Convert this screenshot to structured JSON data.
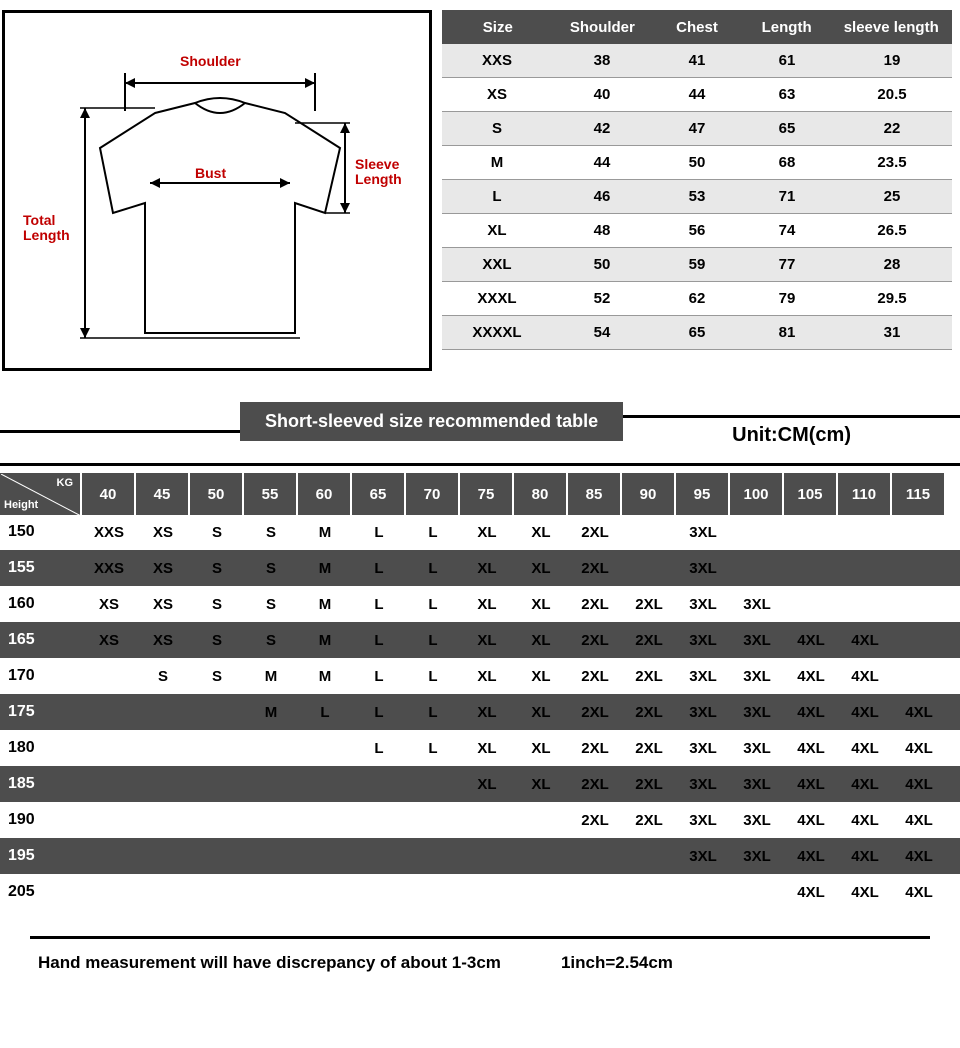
{
  "diagram": {
    "label_shoulder": "Shoulder",
    "label_bust": "Bust",
    "label_sleeve": "Sleeve\nLength",
    "label_total": "Total\nLength"
  },
  "size_table": {
    "headers": [
      "Size",
      "Shoulder",
      "Chest",
      "Length",
      "sleeve length"
    ],
    "rows": [
      {
        "size": "XXS",
        "shoulder": "38",
        "chest": "41",
        "length": "61",
        "sleeve": "19"
      },
      {
        "size": "XS",
        "shoulder": "40",
        "chest": "44",
        "length": "63",
        "sleeve": "20.5"
      },
      {
        "size": "S",
        "shoulder": "42",
        "chest": "47",
        "length": "65",
        "sleeve": "22"
      },
      {
        "size": "M",
        "shoulder": "44",
        "chest": "50",
        "length": "68",
        "sleeve": "23.5"
      },
      {
        "size": "L",
        "shoulder": "46",
        "chest": "53",
        "length": "71",
        "sleeve": "25"
      },
      {
        "size": "XL",
        "shoulder": "48",
        "chest": "56",
        "length": "74",
        "sleeve": "26.5"
      },
      {
        "size": "XXL",
        "shoulder": "50",
        "chest": "59",
        "length": "77",
        "sleeve": "28"
      },
      {
        "size": "XXXL",
        "shoulder": "52",
        "chest": "62",
        "length": "79",
        "sleeve": "29.5"
      },
      {
        "size": "XXXXL",
        "shoulder": "54",
        "chest": "65",
        "length": "81",
        "sleeve": "31"
      }
    ]
  },
  "mid": {
    "title": "Short-sleeved size recommended table",
    "unit": "Unit:CM(cm)"
  },
  "rec": {
    "kg_label": "KG",
    "height_label": "Height",
    "weights": [
      "40",
      "45",
      "50",
      "55",
      "60",
      "65",
      "70",
      "75",
      "80",
      "85",
      "90",
      "95",
      "100",
      "105",
      "110",
      "115"
    ],
    "rows": [
      {
        "h": "150",
        "gray": false,
        "v": [
          "XXS",
          "XS",
          "S",
          "S",
          "M",
          "L",
          "L",
          "XL",
          "XL",
          "2XL",
          "",
          "3XL",
          "",
          "",
          "",
          ""
        ]
      },
      {
        "h": "155",
        "gray": true,
        "v": [
          "XXS",
          "XS",
          "S",
          "S",
          "M",
          "L",
          "L",
          "XL",
          "XL",
          "2XL",
          "",
          "3XL",
          "",
          "",
          "",
          ""
        ]
      },
      {
        "h": "160",
        "gray": false,
        "v": [
          "XS",
          "XS",
          "S",
          "S",
          "M",
          "L",
          "L",
          "XL",
          "XL",
          "2XL",
          "2XL",
          "3XL",
          "3XL",
          "",
          "",
          ""
        ]
      },
      {
        "h": "165",
        "gray": true,
        "v": [
          "XS",
          "XS",
          "S",
          "S",
          "M",
          "L",
          "L",
          "XL",
          "XL",
          "2XL",
          "2XL",
          "3XL",
          "3XL",
          "4XL",
          "4XL",
          ""
        ]
      },
      {
        "h": "170",
        "gray": false,
        "v": [
          "",
          "S",
          "S",
          "M",
          "M",
          "L",
          "L",
          "XL",
          "XL",
          "2XL",
          "2XL",
          "3XL",
          "3XL",
          "4XL",
          "4XL",
          ""
        ]
      },
      {
        "h": "175",
        "gray": true,
        "v": [
          "",
          "",
          "",
          "M",
          "L",
          "L",
          "L",
          "XL",
          "XL",
          "2XL",
          "2XL",
          "3XL",
          "3XL",
          "4XL",
          "4XL",
          "4XL"
        ]
      },
      {
        "h": "180",
        "gray": false,
        "v": [
          "",
          "",
          "",
          "",
          "",
          "L",
          "L",
          "XL",
          "XL",
          "2XL",
          "2XL",
          "3XL",
          "3XL",
          "4XL",
          "4XL",
          "4XL"
        ]
      },
      {
        "h": "185",
        "gray": true,
        "v": [
          "",
          "",
          "",
          "",
          "",
          "",
          "",
          "XL",
          "XL",
          "2XL",
          "2XL",
          "3XL",
          "3XL",
          "4XL",
          "4XL",
          "4XL"
        ]
      },
      {
        "h": "190",
        "gray": false,
        "v": [
          "",
          "",
          "",
          "",
          "",
          "",
          "",
          "",
          "",
          "2XL",
          "2XL",
          "3XL",
          "3XL",
          "4XL",
          "4XL",
          "4XL"
        ]
      },
      {
        "h": "195",
        "gray": true,
        "v": [
          "",
          "",
          "",
          "",
          "",
          "",
          "",
          "",
          "",
          "",
          "",
          "3XL",
          "3XL",
          "4XL",
          "4XL",
          "4XL"
        ]
      },
      {
        "h": "205",
        "gray": false,
        "v": [
          "",
          "",
          "",
          "",
          "",
          "",
          "",
          "",
          "",
          "",
          "",
          "",
          "",
          "4XL",
          "4XL",
          "4XL"
        ]
      }
    ]
  },
  "footer": {
    "note1": "Hand measurement will have discrepancy of about  1-3cm",
    "note2": "1inch=2.54cm"
  },
  "colors": {
    "dark": "#4d4d4d",
    "light_row": "#e8e8e8",
    "red": "#c00000"
  }
}
